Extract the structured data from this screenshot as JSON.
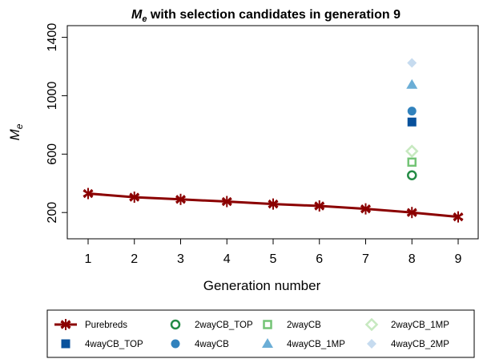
{
  "chart_data": {
    "type": "scatter",
    "title_symbol": "M",
    "title_subscript": "e",
    "title_rest": " with selection candidates in generation 9",
    "xlabel": "Generation number",
    "ylabel_symbol": "M",
    "ylabel_subscript": "e",
    "xlim": [
      0.55,
      9.45
    ],
    "ylim": [
      20,
      1480
    ],
    "xticks": [
      "1",
      "2",
      "3",
      "4",
      "5",
      "6",
      "7",
      "8",
      "9"
    ],
    "yticks": [
      "200",
      "600",
      "1000",
      "1400"
    ],
    "grid": false,
    "legend_placement": "bottom",
    "series": [
      {
        "name": "Purebreds",
        "marker": "star",
        "color": "#8b0000",
        "line": true,
        "x": [
          1,
          2,
          3,
          4,
          5,
          6,
          7,
          8,
          9
        ],
        "y": [
          330,
          305,
          290,
          275,
          258,
          245,
          225,
          200,
          170
        ]
      },
      {
        "name": "2wayCB_TOP",
        "marker": "circle-open",
        "color": "#238b45",
        "x": [
          8
        ],
        "y": [
          455
        ]
      },
      {
        "name": "2wayCB",
        "marker": "square-open",
        "color": "#74c476",
        "x": [
          8
        ],
        "y": [
          545
        ]
      },
      {
        "name": "2wayCB_1MP",
        "marker": "diamond-open",
        "color": "#c7e9c0",
        "x": [
          8
        ],
        "y": [
          620
        ]
      },
      {
        "name": "4wayCB_TOP",
        "marker": "square-filled",
        "color": "#08519c",
        "x": [
          8
        ],
        "y": [
          820
        ]
      },
      {
        "name": "4wayCB",
        "marker": "circle-filled",
        "color": "#3182bd",
        "x": [
          8
        ],
        "y": [
          895
        ]
      },
      {
        "name": "4wayCB_1MP",
        "marker": "triangle-filled",
        "color": "#6baed6",
        "x": [
          8
        ],
        "y": [
          1075
        ]
      },
      {
        "name": "4wayCB_2MP",
        "marker": "diamond-filled",
        "color": "#c6dbef",
        "x": [
          8
        ],
        "y": [
          1225
        ]
      }
    ]
  }
}
